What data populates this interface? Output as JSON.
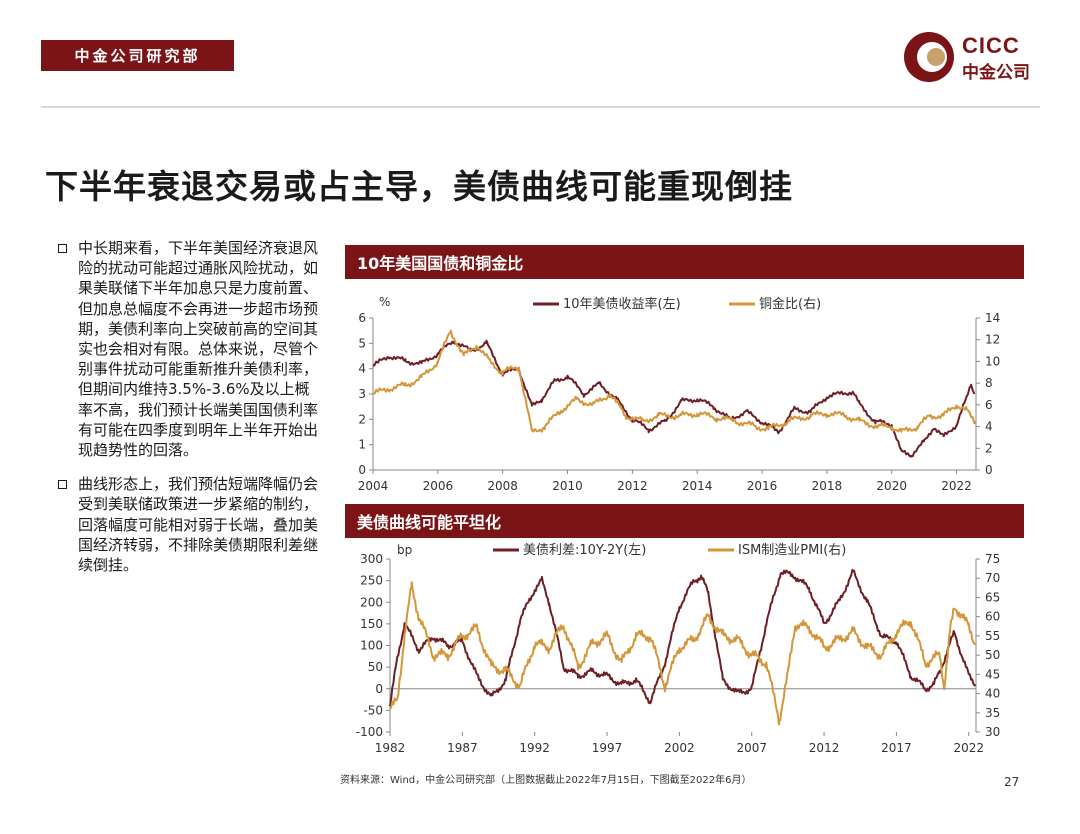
{
  "header": {
    "dept": "中金公司研究部",
    "logo_en": "CICC",
    "logo_cn": "中金公司"
  },
  "title": "下半年衰退交易或占主导，美债曲线可能重现倒挂",
  "bullets": [
    "中长期来看，下半年美国经济衰退风险的扰动可能超过通胀风险扰动，如果美联储下半年加息只是力度前置、但加息总幅度不会再进一步超市场预期，美债利率向上突破前高的空间其实也会相对有限。总体来说，尽管个别事件扰动可能重新推升美债利率，但期间内维持3.5%-3.6%及以上概率不高，我们预计长端美国国债利率有可能在四季度到明年上半年开始出现趋势性的回落。",
    "曲线形态上，我们预估短端降幅仍会受到美联储政策进一步紧缩的制约，回落幅度可能相对弱于长端，叠加美国经济转弱，不排除美债期限利差继续倒挂。"
  ],
  "colors": {
    "brand": "#7b1416",
    "line_dark": "#6e1f24",
    "line_gold": "#d4963a"
  },
  "chart_data": [
    {
      "type": "line",
      "panel_title": "10年美国国债和铜金比",
      "ylabel_left": "%",
      "ylim_left": [
        0,
        6
      ],
      "yticks_left": [
        "0",
        "1",
        "2",
        "3",
        "4",
        "5",
        "6"
      ],
      "ylim_right": [
        0,
        14
      ],
      "yticks_right": [
        "0",
        "2",
        "4",
        "6",
        "8",
        "10",
        "12",
        "14"
      ],
      "xlim": [
        2004,
        2022.6
      ],
      "xticks": [
        "2004",
        "2006",
        "2008",
        "2010",
        "2012",
        "2014",
        "2016",
        "2018",
        "2020",
        "2022"
      ],
      "series": [
        {
          "name": "10年美债收益率(左)",
          "axis": "left",
          "x": [
            2004,
            2004.5,
            2005,
            2005.5,
            2006,
            2006.5,
            2007,
            2007.5,
            2008,
            2008.5,
            2008.9,
            2009.2,
            2009.6,
            2010,
            2010.5,
            2011,
            2011.5,
            2012,
            2012.5,
            2013,
            2013.5,
            2014,
            2014.5,
            2015,
            2015.5,
            2016,
            2016.5,
            2017,
            2017.5,
            2018,
            2018.8,
            2019,
            2019.5,
            2020,
            2020.3,
            2020.6,
            2021,
            2021.3,
            2021.6,
            2022,
            2022.3,
            2022.45,
            2022.55
          ],
          "values": [
            4.1,
            4.5,
            4.3,
            4.2,
            4.6,
            5.1,
            4.7,
            5.0,
            3.8,
            4.0,
            2.5,
            2.8,
            3.5,
            3.7,
            3.0,
            3.4,
            2.8,
            2.0,
            1.6,
            1.9,
            2.7,
            2.8,
            2.5,
            2.0,
            2.3,
            1.9,
            1.5,
            2.4,
            2.3,
            2.9,
            3.1,
            2.6,
            1.9,
            1.8,
            0.7,
            0.6,
            1.1,
            1.7,
            1.3,
            1.8,
            2.8,
            3.4,
            3.0
          ]
        },
        {
          "name": "铜金比(右)",
          "axis": "right",
          "x": [
            2004,
            2004.5,
            2005,
            2005.5,
            2006,
            2006.4,
            2006.8,
            2007.2,
            2007.6,
            2008,
            2008.5,
            2008.9,
            2009.3,
            2009.8,
            2010.3,
            2010.8,
            2011.3,
            2011.8,
            2012.3,
            2012.8,
            2013.5,
            2014,
            2014.6,
            2015.2,
            2015.8,
            2016.2,
            2016.8,
            2017.5,
            2018,
            2018.6,
            2019,
            2019.6,
            2020,
            2020.3,
            2020.8,
            2021.2,
            2021.6,
            2022,
            2022.3,
            2022.55
          ],
          "values": [
            7.0,
            7.5,
            7.8,
            8.5,
            10.0,
            12.8,
            10.5,
            11.5,
            10.0,
            9.0,
            9.5,
            3.5,
            4.0,
            5.5,
            6.5,
            6.0,
            7.0,
            5.0,
            4.5,
            5.0,
            5.0,
            5.2,
            4.8,
            4.5,
            4.0,
            3.8,
            4.5,
            5.0,
            5.2,
            5.0,
            4.5,
            4.0,
            4.0,
            3.5,
            4.0,
            5.0,
            5.0,
            6.0,
            5.5,
            4.5
          ]
        }
      ]
    },
    {
      "type": "line",
      "panel_title": "美债曲线可能平坦化",
      "ylabel_left": "bp",
      "ylim_left": [
        -100,
        300
      ],
      "yticks_left": [
        "-100",
        "-50",
        "0",
        "50",
        "100",
        "150",
        "200",
        "250",
        "300"
      ],
      "ylim_right": [
        30,
        75
      ],
      "yticks_right": [
        "30",
        "35",
        "40",
        "45",
        "50",
        "55",
        "60",
        "65",
        "70",
        "75"
      ],
      "xlim": [
        1982,
        2022.5
      ],
      "xticks": [
        "1982",
        "1987",
        "1992",
        "1997",
        "2002",
        "2007",
        "2012",
        "2017",
        "2022"
      ],
      "series": [
        {
          "name": "美债利差:10Y-2Y(左)",
          "axis": "left",
          "x": [
            1982,
            1982.5,
            1983,
            1984,
            1985,
            1986,
            1987,
            1988,
            1989,
            1990,
            1991,
            1992,
            1992.5,
            1993,
            1994,
            1995,
            1996,
            1997,
            1998,
            1999,
            2000,
            2001,
            2002,
            2003,
            2003.5,
            2004,
            2005,
            2006,
            2007,
            2008,
            2009,
            2010,
            2011,
            2012,
            2013,
            2014,
            2015,
            2016,
            2017,
            2018,
            2019,
            2019.6,
            2020,
            2021,
            2022,
            2022.45
          ],
          "values": [
            -40,
            70,
            150,
            90,
            120,
            100,
            110,
            30,
            -20,
            20,
            160,
            230,
            250,
            200,
            50,
            30,
            40,
            30,
            10,
            20,
            -30,
            60,
            190,
            250,
            260,
            220,
            20,
            -10,
            0,
            150,
            270,
            260,
            230,
            150,
            200,
            270,
            200,
            120,
            110,
            30,
            0,
            10,
            40,
            130,
            30,
            10
          ]
        },
        {
          "name": "ISM制造业PMI(右)",
          "axis": "right",
          "x": [
            1982,
            1982.5,
            1983,
            1983.5,
            1984,
            1985,
            1986,
            1987,
            1988,
            1989,
            1990,
            1991,
            1992,
            1993,
            1994,
            1995,
            1996,
            1997,
            1998,
            1999,
            2000,
            2001,
            2002,
            2003,
            2004,
            2005,
            2006,
            2007,
            2008,
            2008.9,
            2009.5,
            2010,
            2011,
            2012,
            2013,
            2014,
            2015,
            2016,
            2017,
            2018,
            2019,
            2020,
            2020.3,
            2020.7,
            2021,
            2021.5,
            2022,
            2022.45
          ],
          "values": [
            36,
            38,
            55,
            68,
            60,
            50,
            50,
            55,
            57,
            47,
            46,
            42,
            53,
            52,
            58,
            47,
            53,
            55,
            48,
            55,
            55,
            42,
            52,
            54,
            60,
            55,
            54,
            50,
            48,
            33,
            45,
            58,
            57,
            52,
            54,
            56,
            52,
            50,
            56,
            59,
            48,
            50,
            42,
            56,
            62,
            61,
            57,
            53
          ]
        }
      ]
    }
  ],
  "footer": {
    "source": "资料来源：Wind，中金公司研究部（上图数据截止2022年7月15日，下图截至2022年6月）",
    "page": "27"
  }
}
